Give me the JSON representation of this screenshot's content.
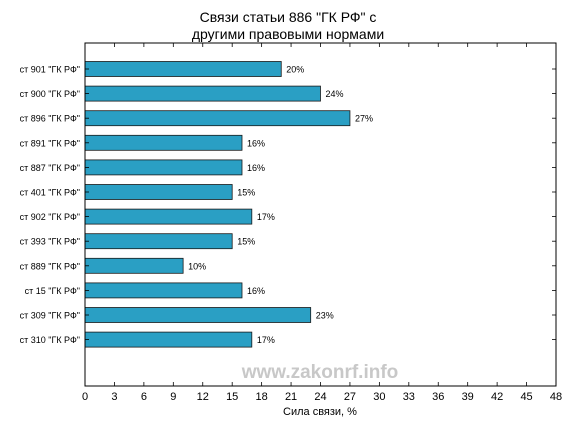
{
  "chart_data": {
    "type": "bar",
    "orientation": "horizontal",
    "title_lines": [
      "Связи статьи 886 \"ГК РФ\" с",
      "другими правовыми нормами"
    ],
    "xlabel": "Сила связи, %",
    "ylabel": "",
    "xlim": [
      0,
      48
    ],
    "xticks": [
      0,
      3,
      6,
      9,
      12,
      15,
      18,
      21,
      24,
      27,
      30,
      33,
      36,
      39,
      42,
      45,
      48
    ],
    "categories": [
      "ст 901 \"ГК РФ\"",
      "ст 900 \"ГК РФ\"",
      "ст 896 \"ГК РФ\"",
      "ст 891 \"ГК РФ\"",
      "ст 887 \"ГК РФ\"",
      "ст 401 \"ГК РФ\"",
      "ст 902 \"ГК РФ\"",
      "ст 393 \"ГК РФ\"",
      "ст 889 \"ГК РФ\"",
      "ст 15 \"ГК РФ\"",
      "ст 309 \"ГК РФ\"",
      "ст 310 \"ГК РФ\""
    ],
    "values": [
      20,
      24,
      27,
      16,
      16,
      15,
      17,
      15,
      10,
      16,
      23,
      17
    ],
    "value_labels": [
      "20%",
      "24%",
      "27%",
      "16%",
      "16%",
      "15%",
      "17%",
      "15%",
      "10%",
      "16%",
      "23%",
      "17%"
    ],
    "bar_color": "#2a9fc4",
    "bar_edge_color": "#1a1a1a",
    "grid": false,
    "legend": "none"
  },
  "watermark": {
    "text": "www.zakonrf.info",
    "color": "#c8c8c8"
  }
}
